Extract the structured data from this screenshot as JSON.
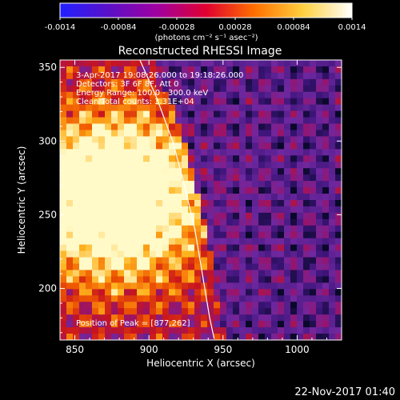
{
  "colorbar": {
    "ticks": [
      -0.0014,
      -0.00084,
      -0.00028,
      0.00028,
      0.00084,
      0.0014
    ],
    "tick_labels": [
      "-0.0014",
      "-0.00084",
      "-0.00028",
      "0.00028",
      "0.00084",
      "0.0014"
    ],
    "unit_label": "(photons cm⁻² s⁻¹ asec⁻²)",
    "range": [
      -0.0014,
      0.0014
    ],
    "gradient": [
      "#2020ff",
      "#5a10c8",
      "#a000a0",
      "#e00030",
      "#ff7000",
      "#ffd040",
      "#ffffff"
    ]
  },
  "chart_data": {
    "type": "heatmap",
    "title": "Reconstructed RHESSI Image",
    "xlabel": "Heliocentric X (arcsec)",
    "ylabel": "Heliocentric Y (arcsec)",
    "xlim": [
      840,
      1030
    ],
    "ylim": [
      165,
      355
    ],
    "xticks": [
      850,
      900,
      950,
      1000
    ],
    "yticks": [
      200,
      250,
      300,
      350
    ],
    "peak": {
      "x": 877,
      "y": 262
    },
    "annotations": [
      "3-Apr-2017 19:08:26.000 to 19:18:26.000",
      "Detectors: 3F 6F 8F, Att 0",
      "Energy Range: 100.0 - 300.0 keV",
      "Clean      Total counts: 3.31E+04",
      "Position of Peak = [877,262]"
    ],
    "limb_curve": [
      [
        893,
        357
      ],
      [
        905,
        330
      ],
      [
        916,
        300
      ],
      [
        924,
        270
      ],
      [
        931,
        240
      ],
      [
        936,
        210
      ],
      [
        941,
        180
      ],
      [
        944,
        166
      ]
    ],
    "colors": {
      "hot_core": "#fff2a0",
      "background": "#6a1a9a"
    }
  },
  "footer": {
    "timestamp": "22-Nov-2017 01:40"
  }
}
